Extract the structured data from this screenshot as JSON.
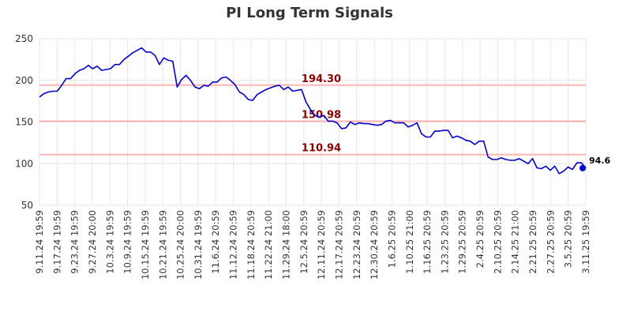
{
  "chart_data": {
    "type": "line",
    "title": "PI Long Term Signals",
    "xlabel": "",
    "ylabel": "",
    "ylim": [
      50,
      250
    ],
    "yticks": [
      50,
      100,
      150,
      200,
      250
    ],
    "grid": true,
    "x_tick_labels": [
      "9.11.24 19:59",
      "9.17.24 19:59",
      "9.23.24 19:59",
      "9.27.24 20:00",
      "10.3.24 19:59",
      "10.9.24 19:59",
      "10.15.24 19:59",
      "10.21.24 19:59",
      "10.25.24 20:00",
      "10.31.24 19:59",
      "11.6.24 20:59",
      "11.12.24 20:59",
      "11.18.24 20:59",
      "11.22.24 21:00",
      "11.29.24 18:00",
      "12.5.24 20:59",
      "12.11.24 20:59",
      "12.17.24 20:59",
      "12.23.24 20:59",
      "12.30.24 20:59",
      "1.6.25 20:59",
      "1.10.25 21:00",
      "1.16.25 20:59",
      "1.23.25 20:59",
      "1.29.25 20:59",
      "2.4.25 20:59",
      "2.10.25 20:59",
      "2.14.25 21:00",
      "2.21.25 20:59",
      "2.27.25 20:59",
      "3.5.25 20:59",
      "3.11.25 19:59"
    ],
    "series": [
      {
        "color": "#0000cc",
        "values": [
          180,
          184,
          186,
          187,
          187,
          194,
          202,
          202,
          208,
          212,
          214,
          218,
          214,
          217,
          212,
          213,
          214,
          219,
          219,
          225,
          229,
          233,
          236,
          239,
          234,
          234,
          230,
          219,
          227,
          224,
          223,
          192,
          201,
          206,
          200,
          192,
          190,
          194,
          193,
          198,
          198,
          203,
          204,
          200,
          195,
          186,
          183,
          177,
          176,
          183,
          186,
          189,
          191,
          193,
          194,
          189,
          192,
          187,
          188,
          189,
          174,
          165,
          158,
          156,
          158,
          151,
          151,
          149,
          142,
          143,
          150,
          147,
          149,
          148,
          148,
          147,
          146,
          147,
          151,
          152,
          149,
          149,
          149,
          144,
          146,
          149,
          136,
          132,
          132,
          139,
          139,
          140,
          140,
          131,
          133,
          131,
          128,
          127,
          123,
          127,
          127,
          108,
          105,
          105,
          107,
          105,
          104,
          104,
          106,
          103,
          100,
          106,
          95,
          94,
          97,
          92,
          97,
          88,
          91,
          96,
          93,
          101,
          101,
          94.6
        ]
      }
    ],
    "signal_lines": [
      {
        "value": 194.3,
        "label": "194.30",
        "color": "#ffb3b3",
        "label_color": "#8b0000"
      },
      {
        "value": 150.98,
        "label": "150.98",
        "color": "#ffb3b3",
        "label_color": "#8b0000"
      },
      {
        "value": 110.94,
        "label": "110.94",
        "color": "#ffb3b3",
        "label_color": "#8b0000"
      }
    ],
    "last_value": {
      "label": "94.6",
      "value": 94.6,
      "color": "#0000cc"
    },
    "colors": {
      "line": "#0000cc",
      "grid": "#e6e6e6",
      "signal_line": "#ffb3b3",
      "signal_label": "#8b0000",
      "axis_text": "#333333",
      "title": "#333333"
    }
  }
}
